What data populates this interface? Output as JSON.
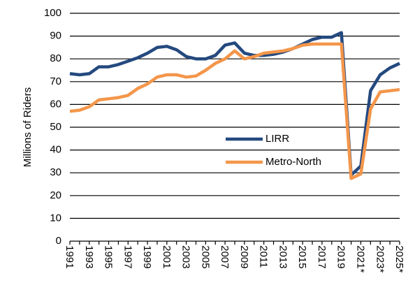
{
  "chart_data": {
    "type": "line",
    "y_label": "Millions of Riders",
    "categories": [
      "1991",
      null,
      "1993",
      null,
      "1995",
      null,
      "1997",
      null,
      "1999",
      null,
      "2001",
      null,
      "2003",
      null,
      "2005",
      null,
      "2007",
      null,
      "2009",
      null,
      "2011",
      null,
      "2013",
      null,
      "2015",
      null,
      "2017",
      null,
      "2019",
      null,
      "2021*",
      null,
      "2023*",
      null,
      "2025*"
    ],
    "series": [
      {
        "name": "LIRR",
        "color": "#24497f",
        "values": [
          73.5,
          73,
          73.5,
          76.5,
          76.5,
          77.5,
          79,
          80.5,
          82.5,
          85,
          85.5,
          84,
          81,
          80,
          80,
          81.5,
          86,
          87,
          82.5,
          81.5,
          81.5,
          82,
          83,
          84.5,
          86.5,
          88.5,
          89.5,
          89.5,
          91.5,
          29,
          33,
          66,
          73,
          76,
          78
        ]
      },
      {
        "name": "Metro-North",
        "color": "#f4964a",
        "values": [
          57,
          57.5,
          59,
          62,
          62.5,
          63,
          64,
          67,
          69,
          72,
          73,
          73,
          72,
          72.5,
          75,
          78,
          80,
          83.5,
          80,
          81,
          82.5,
          83,
          83.5,
          84.5,
          86,
          86.5,
          86.5,
          86.5,
          86.5,
          27.5,
          29.5,
          58,
          65.5,
          66,
          66.5
        ]
      }
    ],
    "ylim": [
      0,
      100
    ],
    "yticks": [
      0,
      10,
      20,
      30,
      40,
      50,
      60,
      70,
      80,
      90,
      100
    ],
    "grid": true
  }
}
